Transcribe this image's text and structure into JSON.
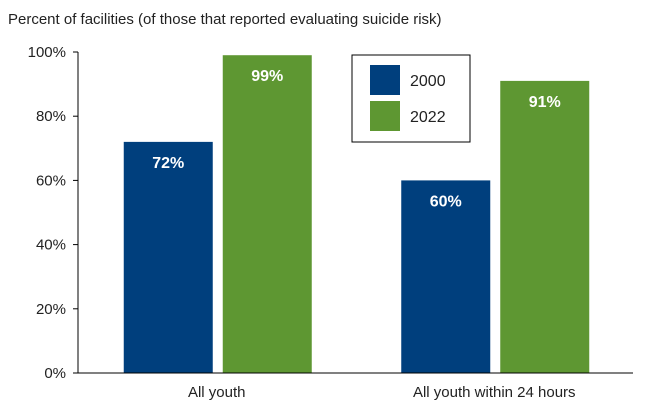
{
  "chart_data": {
    "type": "bar",
    "title": "Percent of facilities (of those that reported evaluating suicide risk)",
    "categories": [
      "All youth",
      "All youth within 24 hours"
    ],
    "series": [
      {
        "name": "2000",
        "values": [
          72,
          60
        ],
        "labels": [
          "72%",
          "60%"
        ],
        "color": "#003f7d"
      },
      {
        "name": "2022",
        "values": [
          99,
          91
        ],
        "labels": [
          "99%",
          "91%"
        ],
        "color": "#5e9732"
      }
    ],
    "ylim": [
      0,
      100
    ],
    "yticks": [
      0,
      20,
      40,
      60,
      80,
      100
    ],
    "ytick_labels": [
      "0%",
      "20%",
      "40%",
      "60%",
      "80%",
      "100%"
    ],
    "legend": "top-center",
    "grid": false
  }
}
